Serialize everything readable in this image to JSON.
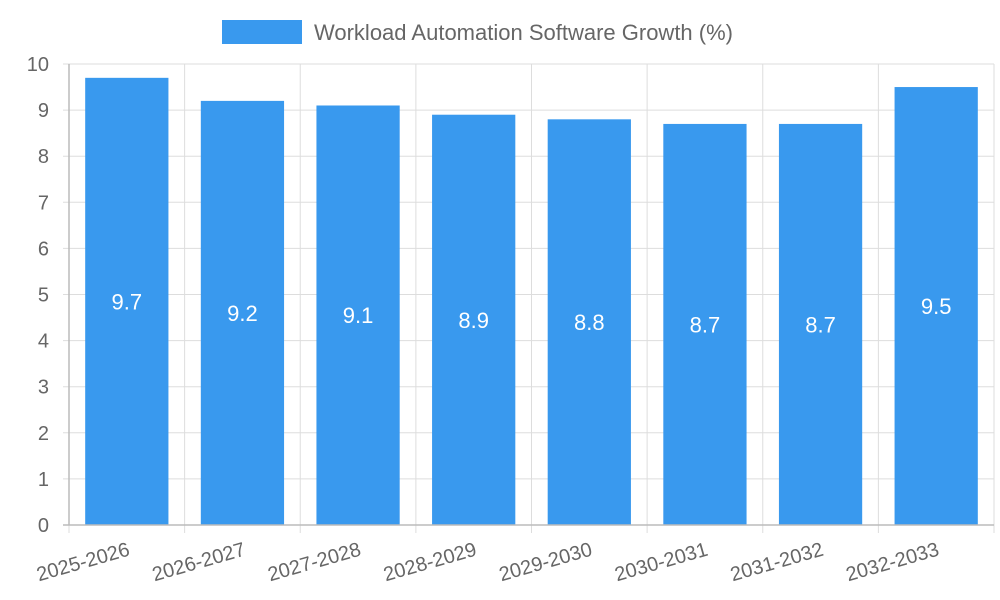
{
  "chart_data": {
    "type": "bar",
    "categories": [
      "2025-2026",
      "2026-2027",
      "2027-2028",
      "2028-2029",
      "2029-2030",
      "2030-2031",
      "2031-2032",
      "2032-2033"
    ],
    "series": [
      {
        "name": "Workload Automation Software Growth (%)",
        "values": [
          9.7,
          9.2,
          9.1,
          8.9,
          8.8,
          8.7,
          8.7,
          9.5
        ]
      }
    ],
    "ylim": [
      0,
      10
    ],
    "yticks": [
      0,
      1,
      2,
      3,
      4,
      5,
      6,
      7,
      8,
      9,
      10
    ],
    "grid": true,
    "legend_position": "top-center",
    "show_data_labels": true,
    "colors": {
      "bar": "#3999EE",
      "grid": "#dddddd",
      "axis": "#bbbbbb",
      "text": "#666666",
      "data_label": "#ffffff"
    }
  }
}
